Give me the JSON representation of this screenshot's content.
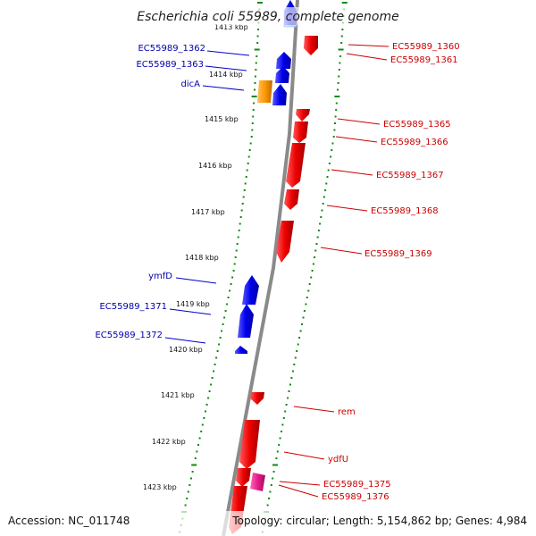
{
  "title": "Escherichia coli 55989, complete genome",
  "footer": {
    "accession": "Accession: NC_011748",
    "summary": "Topology: circular; Length: 5,154,862 bp; Genes: 4,984"
  },
  "colors": {
    "forward_gene": "#0000ee",
    "reverse_gene": "#ee0000",
    "special_orange": "#ff9900",
    "special_magenta": "#e81a8c",
    "forward_label": "#0000aa",
    "reverse_label": "#cc0000",
    "dotted_ring": "#118811",
    "backbone": "#888888"
  },
  "ticks": [
    "1413 kbp",
    "1414 kbp",
    "1415 kbp",
    "1416 kbp",
    "1417 kbp",
    "1418 kbp",
    "1419 kbp",
    "1420 kbp",
    "1421 kbp",
    "1422 kbp",
    "1423 kbp"
  ],
  "labels": {
    "left": [
      "EC55989_1362",
      "EC55989_1363",
      "dicA",
      "ymfD",
      "EC55989_1371",
      "EC55989_1372"
    ],
    "right": [
      "EC55989_1360",
      "EC55989_1361",
      "EC55989_1365",
      "EC55989_1366",
      "EC55989_1367",
      "EC55989_1368",
      "EC55989_1369",
      "rem",
      "ydfU",
      "EC55989_1375",
      "EC55989_1376"
    ]
  }
}
